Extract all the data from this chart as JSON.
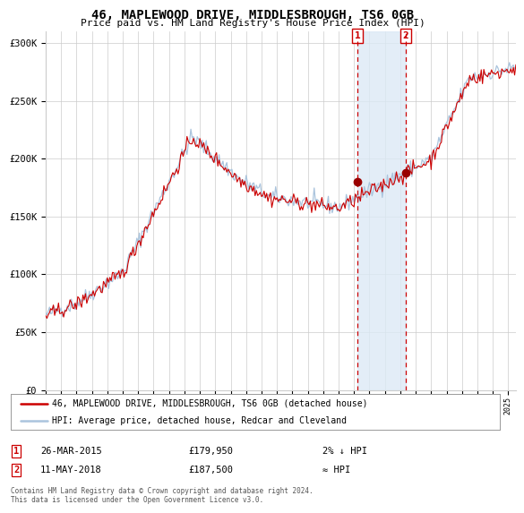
{
  "title": "46, MAPLEWOOD DRIVE, MIDDLESBROUGH, TS6 0GB",
  "subtitle": "Price paid vs. HM Land Registry's House Price Index (HPI)",
  "legend_line1": "46, MAPLEWOOD DRIVE, MIDDLESBROUGH, TS6 0GB (detached house)",
  "legend_line2": "HPI: Average price, detached house, Redcar and Cleveland",
  "annotation1_date": "26-MAR-2015",
  "annotation1_price": "£179,950",
  "annotation1_hpi": "2% ↓ HPI",
  "annotation1_year": 2015.23,
  "annotation1_value": 179950,
  "annotation2_date": "11-MAY-2018",
  "annotation2_price": "£187,500",
  "annotation2_hpi": "≈ HPI",
  "annotation2_year": 2018.36,
  "annotation2_value": 187500,
  "footer": "Contains HM Land Registry data © Crown copyright and database right 2024.\nThis data is licensed under the Open Government Licence v3.0.",
  "hpi_color": "#aac4dd",
  "sale_color": "#cc0000",
  "sale_dot_color": "#990000",
  "vline_color": "#cc0000",
  "shade_color": "#dce9f5",
  "box_color": "#cc0000",
  "grid_color": "#cccccc",
  "bg_color": "#ffffff",
  "ylim_min": 0,
  "ylim_max": 310000,
  "start_year": 1995.0,
  "end_year": 2025.5
}
